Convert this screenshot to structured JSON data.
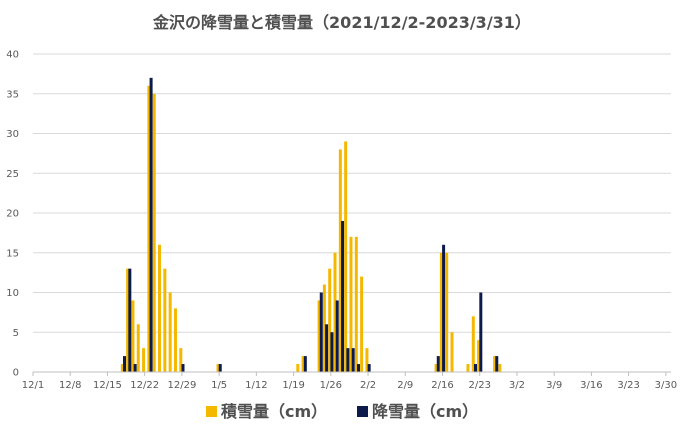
{
  "chart_data": {
    "type": "bar",
    "title": "金沢の降雪量と積雪量（2021/12/2-2023/3/31）",
    "xlabel": "",
    "ylabel": "",
    "ylim": [
      0,
      40
    ],
    "y_ticks": [
      0,
      5,
      10,
      15,
      20,
      25,
      30,
      35,
      40
    ],
    "grid": true,
    "legend_position": "bottom",
    "x_start": "12/1",
    "x_tick_labels": [
      "12/1",
      "12/8",
      "12/15",
      "12/22",
      "12/29",
      "1/5",
      "1/12",
      "1/19",
      "1/26",
      "2/2",
      "2/9",
      "2/16",
      "2/23",
      "3/2",
      "3/9",
      "3/16",
      "3/23",
      "3/30"
    ],
    "series": [
      {
        "name": "積雪量（cm）",
        "color": "#F5B800",
        "points": [
          {
            "x": "12/18",
            "y": 1
          },
          {
            "x": "12/19",
            "y": 13
          },
          {
            "x": "12/20",
            "y": 9
          },
          {
            "x": "12/21",
            "y": 6
          },
          {
            "x": "12/22",
            "y": 3
          },
          {
            "x": "12/23",
            "y": 36
          },
          {
            "x": "12/24",
            "y": 35
          },
          {
            "x": "12/25",
            "y": 16
          },
          {
            "x": "12/26",
            "y": 13
          },
          {
            "x": "12/27",
            "y": 10
          },
          {
            "x": "12/28",
            "y": 8
          },
          {
            "x": "12/29",
            "y": 3
          },
          {
            "x": "1/5",
            "y": 1
          },
          {
            "x": "1/20",
            "y": 1
          },
          {
            "x": "1/21",
            "y": 2
          },
          {
            "x": "1/24",
            "y": 9
          },
          {
            "x": "1/25",
            "y": 11
          },
          {
            "x": "1/26",
            "y": 13
          },
          {
            "x": "1/27",
            "y": 15
          },
          {
            "x": "1/28",
            "y": 28
          },
          {
            "x": "1/29",
            "y": 29
          },
          {
            "x": "1/30",
            "y": 17
          },
          {
            "x": "1/31",
            "y": 17
          },
          {
            "x": "2/1",
            "y": 12
          },
          {
            "x": "2/2",
            "y": 3
          },
          {
            "x": "2/15",
            "y": 1
          },
          {
            "x": "2/16",
            "y": 15
          },
          {
            "x": "2/17",
            "y": 15
          },
          {
            "x": "2/18",
            "y": 5
          },
          {
            "x": "2/21",
            "y": 1
          },
          {
            "x": "2/22",
            "y": 7
          },
          {
            "x": "2/23",
            "y": 4
          },
          {
            "x": "2/26",
            "y": 2
          },
          {
            "x": "2/27",
            "y": 1
          }
        ]
      },
      {
        "name": "降雪量（cm）",
        "color": "#0D1B4C",
        "points": [
          {
            "x": "12/18",
            "y": 2
          },
          {
            "x": "12/19",
            "y": 13
          },
          {
            "x": "12/20",
            "y": 1
          },
          {
            "x": "12/23",
            "y": 37
          },
          {
            "x": "12/29",
            "y": 1
          },
          {
            "x": "1/5",
            "y": 1
          },
          {
            "x": "1/21",
            "y": 2
          },
          {
            "x": "1/24",
            "y": 10
          },
          {
            "x": "1/25",
            "y": 6
          },
          {
            "x": "1/26",
            "y": 5
          },
          {
            "x": "1/27",
            "y": 9
          },
          {
            "x": "1/28",
            "y": 19
          },
          {
            "x": "1/29",
            "y": 3
          },
          {
            "x": "1/30",
            "y": 3
          },
          {
            "x": "1/31",
            "y": 1
          },
          {
            "x": "2/2",
            "y": 1
          },
          {
            "x": "2/15",
            "y": 2
          },
          {
            "x": "2/16",
            "y": 16
          },
          {
            "x": "2/22",
            "y": 1
          },
          {
            "x": "2/23",
            "y": 10
          },
          {
            "x": "2/26",
            "y": 2
          }
        ]
      }
    ]
  }
}
